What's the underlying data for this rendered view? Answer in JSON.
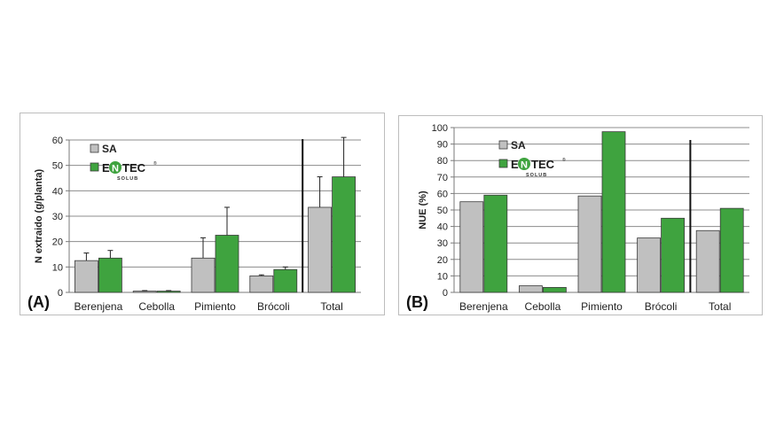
{
  "chart_data": [
    {
      "panel_label": "(A)",
      "type": "bar",
      "ylabel": "N extraido (g/planta)",
      "ylim": [
        0,
        60
      ],
      "yticks": [
        0,
        10,
        20,
        30,
        40,
        50,
        60
      ],
      "categories": [
        "Berenjena",
        "Cebolla",
        "Pimiento",
        "Brócoli",
        "Total"
      ],
      "series": [
        {
          "name": "SA",
          "color": "#c0c0c0",
          "values": [
            12.5,
            0.5,
            13.5,
            6.5,
            33.5
          ],
          "errors": [
            3,
            0.2,
            8,
            0.4,
            12
          ]
        },
        {
          "name": "ENTEC SOLUB",
          "color": "#3fa33f",
          "values": [
            13.5,
            0.5,
            22.5,
            9,
            45.5
          ],
          "errors": [
            3,
            0.2,
            11,
            1,
            15.5
          ]
        }
      ],
      "legend": {
        "position": "top-left",
        "sa_label": "SA",
        "entec_main": "ENTEC",
        "entec_sub": "SOLUB"
      },
      "separator_before": "Total",
      "grid": true
    },
    {
      "panel_label": "(B)",
      "type": "bar",
      "ylabel": "NUE (%)",
      "ylim": [
        0,
        100
      ],
      "yticks": [
        0,
        10,
        20,
        30,
        40,
        50,
        60,
        70,
        80,
        90,
        100
      ],
      "categories": [
        "Berenjena",
        "Cebolla",
        "Pimiento",
        "Brócoli",
        "Total"
      ],
      "series": [
        {
          "name": "SA",
          "color": "#c0c0c0",
          "values": [
            55,
            4,
            58.5,
            33,
            37.5
          ]
        },
        {
          "name": "ENTEC SOLUB",
          "color": "#3fa33f",
          "values": [
            59,
            3,
            97.5,
            45,
            51
          ]
        }
      ],
      "legend": {
        "position": "top-left",
        "sa_label": "SA",
        "entec_main": "ENTEC",
        "entec_sub": "SOLUB"
      },
      "separator_before": "Total",
      "grid": true
    }
  ]
}
